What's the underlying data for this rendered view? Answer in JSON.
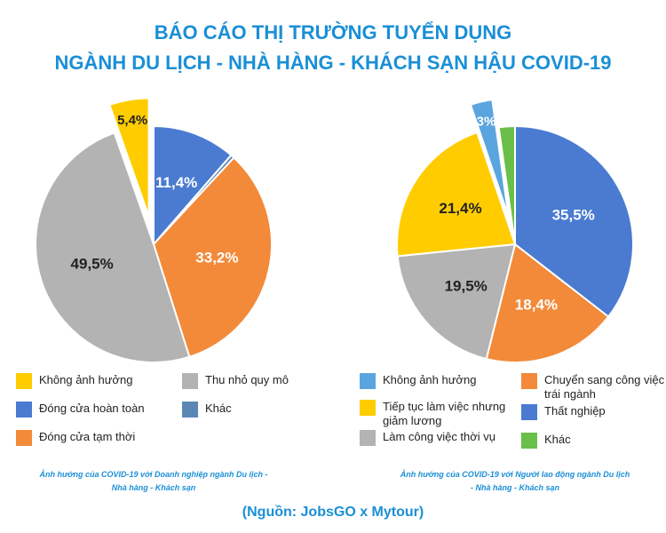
{
  "title": "BÁO CÁO THỊ TRƯỜNG TUYỂN DỤNG",
  "subtitle": "NGÀNH DU LỊCH - NHÀ HÀNG - KHÁCH SẠN HẬU COVID-19",
  "source": "(Nguồn: JobsGO x Mytour)",
  "chart_data": [
    {
      "type": "pie",
      "caption": "Ảnh hưởng của COVID-19 với Doanh nghiệp ngành Du lịch - Nhà hàng - Khách sạn",
      "categories": [
        "Đóng cửa hoàn toàn",
        "Khác",
        "Đóng cửa tạm thời",
        "Thu nhỏ quy mô",
        "Không ảnh hưởng"
      ],
      "values": [
        11.4,
        0.5,
        33.2,
        49.5,
        5.4
      ],
      "value_labels": [
        "11,4%",
        null,
        "33,2%",
        "49,5%",
        "5,4%"
      ],
      "colors": [
        "#4a7bd1",
        "#5b87b5",
        "#f28a3a",
        "#b3b3b3",
        "#ffcc00"
      ],
      "exploded": [
        false,
        false,
        false,
        false,
        true
      ]
    },
    {
      "type": "pie",
      "caption": "Ảnh hưởng của COVID-19 với Người lao động ngành Du lịch - Nhà hàng - Khách sạn",
      "categories": [
        "Thất nghiệp",
        "Chuyển sang công việc trái ngành",
        "Làm công việc thời vụ",
        "Tiếp tục làm việc nhưng giảm lương",
        "Không ảnh hưởng",
        "Khác"
      ],
      "values": [
        35.5,
        18.4,
        19.5,
        21.4,
        3,
        2.2
      ],
      "value_labels": [
        "35,5%",
        "18,4%",
        "19,5%",
        "21,4%",
        "3%",
        null
      ],
      "colors": [
        "#4a7bd1",
        "#f28a3a",
        "#b3b3b3",
        "#ffcc00",
        "#5aa5e0",
        "#6abf4b"
      ],
      "exploded": [
        false,
        false,
        false,
        false,
        true,
        false
      ]
    }
  ]
}
